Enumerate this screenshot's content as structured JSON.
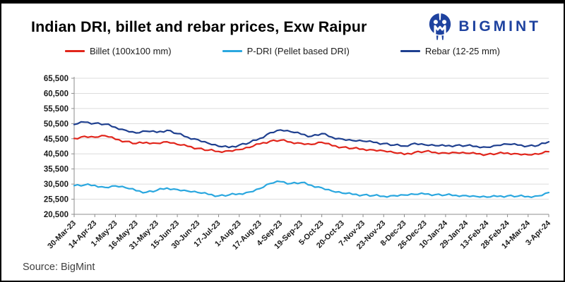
{
  "title": "Indian DRI, billet and rebar prices, Exw Raipur",
  "logo": {
    "text": "BIGMINT",
    "color": "#1e429f"
  },
  "source": "Source: BigMint",
  "legend": [
    {
      "label": "Billet (100x100 mm)",
      "color": "#e1251b"
    },
    {
      "label": "P-DRI (Pellet based DRI)",
      "color": "#2aa7df"
    },
    {
      "label": "Rebar (12-25 mm)",
      "color": "#1e3f8f"
    }
  ],
  "chart_data": {
    "type": "line",
    "title": "Indian DRI, billet and rebar prices, Exw Raipur",
    "xlabel": "",
    "ylabel": "",
    "grid": true,
    "legend_position": "top",
    "ylim": [
      20500,
      65500
    ],
    "ytick_step": 5000,
    "ytick_labels": [
      "65,500",
      "60,500",
      "55,500",
      "50,500",
      "45,500",
      "40,500",
      "35,500",
      "30,500",
      "25,500",
      "20,500"
    ],
    "x_tick_labels": [
      "30-Mar-23",
      "14-Apr-23",
      "1-May-23",
      "16-May-23",
      "31-May-23",
      "15-Jun-23",
      "30-Jun-23",
      "17-Jul-23",
      "1-Aug-23",
      "17-Aug-23",
      "4-Sep-23",
      "19-Sep-23",
      "5-Oct-23",
      "20-Oct-23",
      "7-Nov-23",
      "23-Nov-23",
      "8-Dec-23",
      "26-Dec-23",
      "10-Jan-24",
      "29-Jan-24",
      "13-Feb-24",
      "28-Feb-24",
      "14-Mar-24",
      "3-Apr-24"
    ],
    "x_step": 0.5,
    "series": [
      {
        "name": "Billet (100x100 mm)",
        "color": "#e1251b",
        "values": [
          45600,
          46300,
          46000,
          46500,
          45300,
          44600,
          43900,
          44300,
          44000,
          44500,
          43600,
          43000,
          42300,
          41700,
          41300,
          41500,
          41900,
          42600,
          43800,
          44700,
          45000,
          44400,
          44000,
          43600,
          44300,
          43200,
          42700,
          42300,
          42100,
          41800,
          41500,
          40900,
          40300,
          41000,
          41300,
          41000,
          40800,
          40900,
          40700,
          40500,
          40300,
          40600,
          40800,
          40500,
          40200,
          40400,
          41200
        ]
      },
      {
        "name": "P-DRI (Pellet based DRI)",
        "color": "#2aa7df",
        "values": [
          30000,
          30200,
          30100,
          29400,
          29900,
          29300,
          28300,
          27800,
          28400,
          29200,
          28700,
          28200,
          27700,
          27100,
          26600,
          26900,
          27300,
          27900,
          29000,
          30700,
          31300,
          30700,
          31000,
          30100,
          29300,
          28200,
          27500,
          27100,
          26900,
          26700,
          26500,
          26700,
          26900,
          27100,
          27200,
          27000,
          26900,
          26800,
          26700,
          26400,
          26200,
          26400,
          26600,
          26500,
          26400,
          26600,
          27700
        ]
      },
      {
        "name": "Rebar (12-25 mm)",
        "color": "#1e3f8f",
        "values": [
          50200,
          51000,
          50600,
          50300,
          49300,
          48300,
          47400,
          48000,
          47600,
          48300,
          47200,
          46000,
          45200,
          44000,
          43000,
          42600,
          43400,
          44200,
          45600,
          47500,
          48400,
          47800,
          47000,
          46300,
          47200,
          46000,
          45400,
          44900,
          44700,
          44300,
          43900,
          43400,
          43100,
          44000,
          43500,
          43200,
          43100,
          43300,
          43200,
          43000,
          42700,
          43300,
          43700,
          43400,
          43100,
          43300,
          44500
        ]
      }
    ]
  }
}
